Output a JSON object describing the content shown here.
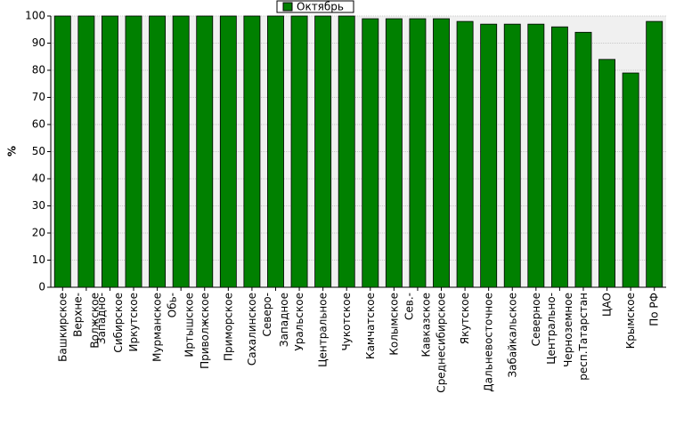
{
  "chart_data": {
    "type": "bar",
    "legend": "top-center",
    "y_label": "%",
    "series": [
      {
        "name": "Октябрь",
        "color": "#008000",
        "values": [
          100,
          100,
          100,
          100,
          100,
          100,
          100,
          100,
          100,
          100,
          100,
          100,
          100,
          99,
          99,
          99,
          99,
          98,
          97,
          97,
          97,
          96,
          94,
          84,
          79,
          98
        ]
      }
    ],
    "categories": [
      "Башкирское",
      "Верхне-\nВолжское",
      "Западно-\nСибирское",
      "Иркутское",
      "Мурманское",
      "Обь-\nИртышское",
      "Приволжское",
      "Приморское",
      "Сахалинское",
      "Северо-\nЗападное",
      "Уральское",
      "Центральное",
      "Чукотское",
      "Камчатское",
      "Колымское",
      "Сев.-\nКавказское",
      "Среднесибирское",
      "Якутское",
      "Дальневосточное",
      "Забайкальское",
      "Северное",
      "Центрально-\nЧерноземное",
      "респ.Татарстан",
      "ЦАО",
      "Крымское",
      "По РФ"
    ],
    "ylim": [
      0,
      100
    ],
    "yticks": [
      0,
      10,
      20,
      30,
      40,
      50,
      60,
      70,
      80,
      90,
      100
    ],
    "grid": true
  }
}
